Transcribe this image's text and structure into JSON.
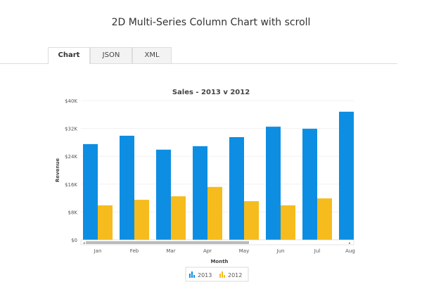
{
  "page_title": "2D Multi-Series Column Chart with scroll",
  "tabs": [
    {
      "label": "Chart",
      "active": true
    },
    {
      "label": "JSON"
    },
    {
      "label": "XML"
    }
  ],
  "chart_data": {
    "type": "bar",
    "title": "Sales - 2013 v 2012",
    "xlabel": "Month",
    "ylabel": "Revenue",
    "ylim": [
      0,
      40000
    ],
    "yticks": [
      "$0",
      "$8K",
      "$16K",
      "$24K",
      "$32K",
      "$40K"
    ],
    "categories": [
      "Jan",
      "Feb",
      "Mar",
      "Apr",
      "May",
      "Jun",
      "Jul",
      "Aug"
    ],
    "series": [
      {
        "name": "2013",
        "color": "#0d8ee3",
        "values": [
          27500,
          29900,
          25900,
          26900,
          29500,
          32500,
          31900,
          36800
        ]
      },
      {
        "name": "2012",
        "color": "#f6bc1d",
        "values": [
          9900,
          11500,
          12500,
          15200,
          11100,
          9900,
          11900,
          null
        ]
      }
    ],
    "legend": "bottom",
    "scrollbar": true,
    "grid": true
  }
}
